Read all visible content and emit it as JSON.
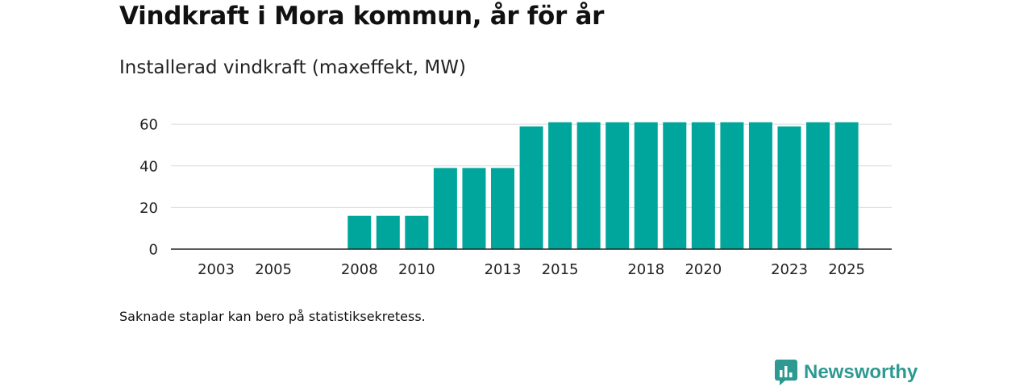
{
  "title": "Vindkraft i Mora kommun, år för år",
  "subtitle": "Installerad vindkraft (maxeffekt, MW)",
  "footnote": "Saknade staplar kan bero på statistiksekretess.",
  "brand": {
    "name": "Newsworthy",
    "icon": "newsworthy-logo-icon",
    "color": "#2c9a92"
  },
  "chart_data": {
    "type": "bar",
    "title": "Vindkraft i Mora kommun, år för år",
    "ylabel": "Installerad vindkraft (maxeffekt, MW)",
    "xlabel": "",
    "x": [
      2003,
      2004,
      2005,
      2006,
      2007,
      2008,
      2009,
      2010,
      2011,
      2012,
      2013,
      2014,
      2015,
      2016,
      2017,
      2018,
      2019,
      2020,
      2021,
      2022,
      2023,
      2024,
      2025
    ],
    "values": [
      0,
      0,
      0,
      0,
      0,
      16,
      16,
      16,
      39,
      39,
      39,
      59,
      61,
      61,
      61,
      61,
      61,
      61,
      61,
      61,
      59,
      61,
      61
    ],
    "x_tick_labels": [
      "2003",
      "2005",
      "2008",
      "2010",
      "2013",
      "2015",
      "2018",
      "2020",
      "2023",
      "2025"
    ],
    "y_ticks": [
      0,
      20,
      40,
      60
    ],
    "ylim": [
      0,
      62
    ],
    "grid": true,
    "bar_color": "#00a69c"
  }
}
